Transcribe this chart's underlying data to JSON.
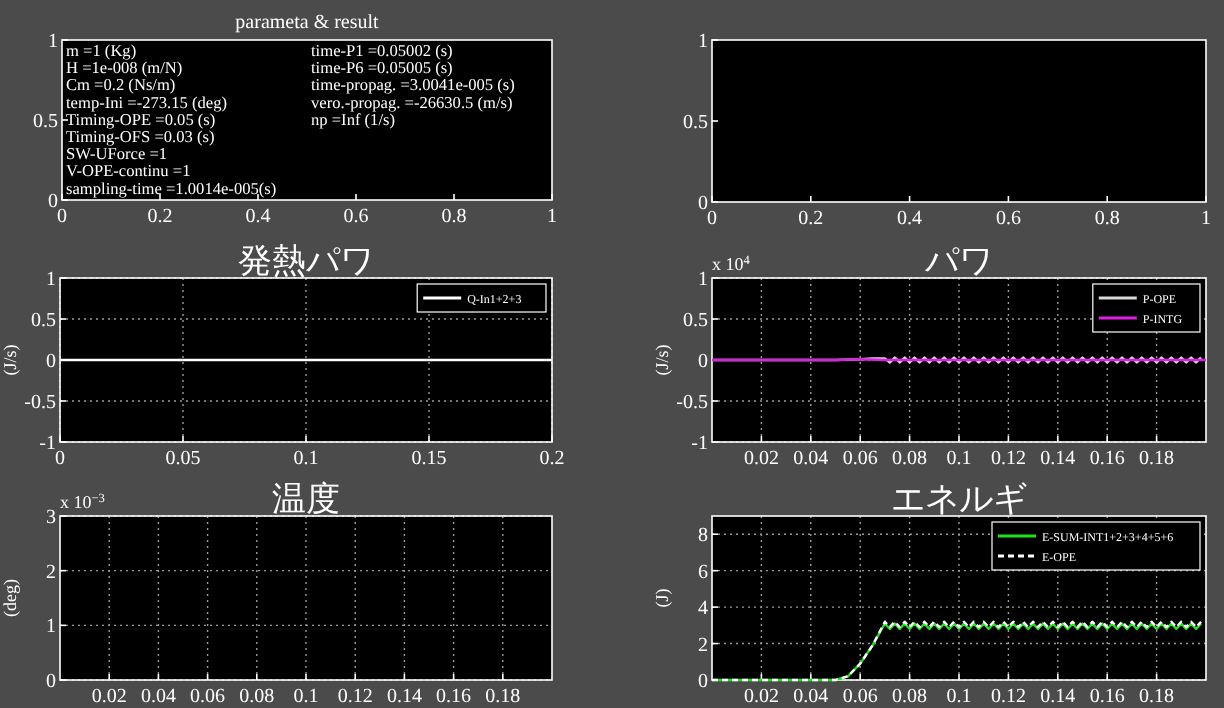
{
  "chart_data": [
    {
      "type": "line",
      "title": "parameta & result",
      "annotations": [
        "m =1 (Kg)",
        "H =1e-008 (m/N)",
        "Cm =0.2 (Ns/m)",
        "temp-Ini =-273.15 (deg)",
        "Timing-OPE =0.05 (s)",
        "Timing-OFS =0.03 (s)",
        "SW-UForce =1",
        "V-OPE-continu =1",
        "sampling-time =1.0014e-005(s)",
        "time-P1 =0.05002 (s)",
        "time-P6 =0.05005 (s)",
        "time-propag. =3.0041e-005 (s)",
        "vero.-propag. =-26630.5 (m/s)",
        "np =Inf (1/s)"
      ],
      "xlim": [
        0,
        1
      ],
      "ylim": [
        0,
        1
      ],
      "xticks": [
        0,
        0.2,
        0.4,
        0.6,
        0.8,
        1
      ],
      "yticks": [
        0,
        0.5,
        1
      ]
    },
    {
      "type": "line",
      "xlim": [
        0,
        1
      ],
      "ylim": [
        0,
        1
      ],
      "xticks": [
        0,
        0.2,
        0.4,
        0.6,
        0.8,
        1
      ],
      "yticks": [
        0,
        0.5,
        1
      ]
    },
    {
      "type": "line",
      "title": "発熱パワ",
      "ylabel": "(J/s)",
      "xlim": [
        0,
        0.2
      ],
      "ylim": [
        -1,
        1
      ],
      "xticks": [
        0,
        0.05,
        0.1,
        0.15,
        0.2
      ],
      "yticks": [
        -1,
        -0.5,
        0,
        0.5,
        1
      ],
      "grid": true,
      "legend": "top right",
      "series": [
        {
          "name": "Q-In1+2+3",
          "color": "#ffffff",
          "x": [
            0,
            0.2
          ],
          "values": [
            0,
            0
          ]
        }
      ]
    },
    {
      "type": "line",
      "title": "パワ",
      "ylabel": "(J/s)",
      "annotations": [
        "x 10$^{4}$"
      ],
      "xlim": [
        0,
        0.2
      ],
      "ylim": [
        -1,
        1
      ],
      "xticks": [
        0.02,
        0.04,
        0.06,
        0.08,
        0.1,
        0.12,
        0.14,
        0.16,
        0.18
      ],
      "yticks": [
        -1,
        -0.5,
        0,
        0.5,
        1
      ],
      "grid": true,
      "legend": "top right",
      "series": [
        {
          "name": "P-OPE",
          "color": "#d8d8d8",
          "x": [
            0,
            0.05,
            0.06,
            0.065,
            0.07,
            0.072,
            0.074,
            0.076,
            0.078,
            0.08,
            0.082,
            0.084,
            0.086,
            0.088,
            0.09,
            0.092,
            0.094,
            0.096,
            0.098,
            0.1,
            0.102,
            0.104,
            0.106,
            0.108,
            0.11,
            0.112,
            0.114,
            0.116,
            0.118,
            0.12,
            0.122,
            0.124,
            0.126,
            0.128,
            0.13,
            0.132,
            0.134,
            0.136,
            0.138,
            0.14,
            0.142,
            0.144,
            0.146,
            0.148,
            0.15,
            0.152,
            0.154,
            0.156,
            0.158,
            0.16,
            0.162,
            0.164,
            0.166,
            0.168,
            0.17,
            0.172,
            0.174,
            0.176,
            0.178,
            0.18,
            0.182,
            0.184,
            0.186,
            0.188,
            0.19,
            0.192,
            0.194,
            0.196,
            0.198
          ],
          "values": [
            0,
            0,
            0.01,
            0.02,
            0.02,
            -0.03,
            0.03,
            -0.03,
            0.03,
            -0.03,
            0.03,
            -0.03,
            0.03,
            -0.03,
            0.03,
            -0.03,
            0.03,
            -0.03,
            0.03,
            -0.03,
            0.03,
            -0.03,
            0.03,
            -0.03,
            0.03,
            -0.03,
            0.03,
            -0.03,
            0.03,
            -0.03,
            0.03,
            -0.03,
            0.03,
            -0.03,
            0.03,
            -0.03,
            0.03,
            -0.03,
            0.03,
            -0.03,
            0.03,
            -0.03,
            0.03,
            -0.03,
            0.03,
            -0.03,
            0.03,
            -0.03,
            0.03,
            -0.03,
            0.03,
            -0.03,
            0.03,
            -0.03,
            0.03,
            -0.03,
            0.03,
            -0.03,
            0.03,
            -0.03,
            0.03,
            -0.03,
            0.03,
            -0.03,
            0.03,
            -0.03,
            0.03,
            -0.03,
            0.03
          ]
        },
        {
          "name": "P-INTG",
          "color": "#e020e0",
          "x": [
            0,
            0.05,
            0.06,
            0.07,
            0.2
          ],
          "values": [
            0,
            0,
            0.01,
            0,
            0
          ]
        }
      ]
    },
    {
      "type": "line",
      "title": "温度",
      "ylabel": "(deg)",
      "annotations": [
        "x 10$^{−3}$"
      ],
      "xlim": [
        0,
        0.2
      ],
      "ylim": [
        0,
        3
      ],
      "xticks": [
        0.02,
        0.04,
        0.06,
        0.08,
        0.1,
        0.12,
        0.14,
        0.16,
        0.18
      ],
      "yticks": [
        0,
        1,
        2,
        3
      ],
      "grid": true
    },
    {
      "type": "line",
      "title": "エネルギ",
      "ylabel": "(J)",
      "xlim": [
        0,
        0.2
      ],
      "ylim": [
        0,
        9
      ],
      "xticks": [
        0.02,
        0.04,
        0.06,
        0.08,
        0.1,
        0.12,
        0.14,
        0.16,
        0.18
      ],
      "yticks": [
        0,
        2,
        4,
        6,
        8
      ],
      "grid": true,
      "legend": "top right",
      "series": [
        {
          "name": "E-SUM-INT1+2+3+4+5+6",
          "color": "#20e020",
          "x": [
            0,
            0.05,
            0.055,
            0.06,
            0.065,
            0.07,
            0.072,
            0.074,
            0.076,
            0.078,
            0.08,
            0.082,
            0.084,
            0.086,
            0.088,
            0.09,
            0.092,
            0.094,
            0.096,
            0.098,
            0.1,
            0.102,
            0.104,
            0.106,
            0.108,
            0.11,
            0.112,
            0.114,
            0.116,
            0.118,
            0.12,
            0.122,
            0.124,
            0.126,
            0.128,
            0.13,
            0.132,
            0.134,
            0.136,
            0.138,
            0.14,
            0.142,
            0.144,
            0.146,
            0.148,
            0.15,
            0.152,
            0.154,
            0.156,
            0.158,
            0.16,
            0.162,
            0.164,
            0.166,
            0.168,
            0.17,
            0.172,
            0.174,
            0.176,
            0.178,
            0.18,
            0.182,
            0.184,
            0.186,
            0.188,
            0.19,
            0.192,
            0.194,
            0.196,
            0.198
          ],
          "values": [
            0,
            0,
            0.2,
            0.9,
            1.9,
            3.1,
            2.8,
            3.1,
            2.8,
            3.1,
            2.8,
            3.1,
            2.8,
            3.1,
            2.8,
            3.1,
            2.8,
            3.1,
            2.8,
            3.1,
            2.8,
            3.1,
            2.8,
            3.1,
            2.8,
            3.1,
            2.8,
            3.1,
            2.8,
            3.1,
            2.8,
            3.1,
            2.8,
            3.1,
            2.8,
            3.1,
            2.8,
            3.1,
            2.8,
            3.1,
            2.8,
            3.1,
            2.8,
            3.1,
            2.8,
            3.1,
            2.8,
            3.1,
            2.8,
            3.1,
            2.8,
            3.1,
            2.8,
            3.1,
            2.8,
            3.1,
            2.8,
            3.1,
            2.8,
            3.1,
            2.8,
            3.1,
            2.8,
            3.1,
            2.8,
            3.1,
            2.8,
            3.1,
            2.8,
            3.1
          ]
        },
        {
          "name": "E-OPE",
          "color": "#ffffff",
          "line_style": "dashed",
          "x": [
            0,
            0.05,
            0.055,
            0.06,
            0.065,
            0.07,
            0.072,
            0.074,
            0.076,
            0.078,
            0.08,
            0.082,
            0.084,
            0.086,
            0.088,
            0.09,
            0.092,
            0.094,
            0.096,
            0.098,
            0.1,
            0.102,
            0.104,
            0.106,
            0.108,
            0.11,
            0.112,
            0.114,
            0.116,
            0.118,
            0.12,
            0.122,
            0.124,
            0.126,
            0.128,
            0.13,
            0.132,
            0.134,
            0.136,
            0.138,
            0.14,
            0.142,
            0.144,
            0.146,
            0.148,
            0.15,
            0.152,
            0.154,
            0.156,
            0.158,
            0.16,
            0.162,
            0.164,
            0.166,
            0.168,
            0.17,
            0.172,
            0.174,
            0.176,
            0.178,
            0.18,
            0.182,
            0.184,
            0.186,
            0.188,
            0.19,
            0.192,
            0.194,
            0.196,
            0.198
          ],
          "values": [
            0,
            0,
            0.2,
            0.9,
            1.9,
            3.2,
            2.9,
            3.2,
            2.9,
            3.2,
            2.9,
            3.2,
            2.9,
            3.2,
            2.9,
            3.2,
            2.9,
            3.2,
            2.9,
            3.2,
            2.9,
            3.2,
            2.9,
            3.2,
            2.9,
            3.2,
            2.9,
            3.2,
            2.9,
            3.2,
            2.9,
            3.2,
            2.9,
            3.2,
            2.9,
            3.2,
            2.9,
            3.2,
            2.9,
            3.2,
            2.9,
            3.2,
            2.9,
            3.2,
            2.9,
            3.2,
            2.9,
            3.2,
            2.9,
            3.2,
            2.9,
            3.2,
            2.9,
            3.2,
            2.9,
            3.2,
            2.9,
            3.2,
            2.9,
            3.2,
            2.9,
            3.2,
            2.9,
            3.2,
            2.9,
            3.2,
            2.9,
            3.2,
            2.9,
            3.2
          ]
        }
      ]
    }
  ]
}
